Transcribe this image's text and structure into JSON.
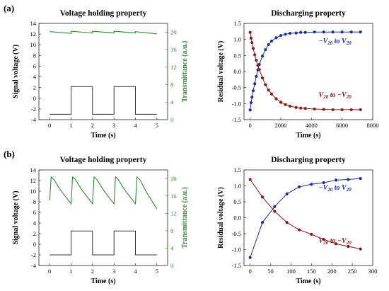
{
  "panel_labels": [
    "(a)",
    "(b)"
  ],
  "chart_data": [
    {
      "type": "line",
      "title": "Voltage holding property",
      "xlabel": "Time (s)",
      "ylabel": "Signal voltage (V)",
      "y2label": "Transmittance (a.u.)",
      "xlim": [
        -0.5,
        5.5
      ],
      "ylim": [
        -4,
        14
      ],
      "y2lim": [
        0,
        22
      ],
      "xticks": [
        0,
        1,
        2,
        3,
        4,
        5
      ],
      "yticks": [
        -4,
        -2,
        0,
        2,
        4,
        6,
        8,
        10,
        12,
        14
      ],
      "y2ticks": [
        0,
        4,
        8,
        12,
        16,
        20
      ],
      "series": [
        {
          "role": "signal",
          "color": "#333333",
          "x": [
            0,
            1,
            1,
            2,
            2,
            3,
            3,
            4,
            4,
            5
          ],
          "y": [
            -3,
            -3,
            2.2,
            2.2,
            -3,
            -3,
            2.2,
            2.2,
            -3,
            -3
          ]
        },
        {
          "role": "transmittance",
          "color": "#2e8b2e",
          "axis": "y2",
          "x": [
            0,
            1,
            1,
            2,
            2,
            3,
            3,
            4,
            4,
            5
          ],
          "y": [
            20.1,
            19.7,
            20.2,
            19.8,
            20.2,
            19.8,
            20.2,
            19.8,
            20.1,
            19.6
          ]
        }
      ]
    },
    {
      "type": "scatter",
      "title": "Discharging property",
      "xlabel": "Time (s)",
      "ylabel": "Residual voltage (V)",
      "xlim": [
        -400,
        8000
      ],
      "ylim": [
        -1.5,
        1.5
      ],
      "xticks": [
        0,
        2000,
        4000,
        6000,
        8000
      ],
      "yticks": [
        -1.5,
        -1.0,
        -0.5,
        0.0,
        0.5,
        1.0,
        1.5
      ],
      "series": [
        {
          "label_main": "−V",
          "label_sub1": "20",
          "label_mid": " to V",
          "label_sub2": "20",
          "color": "#1f2f9e",
          "x": [
            0,
            60,
            120,
            200,
            300,
            400,
            500,
            600,
            800,
            1000,
            1200,
            1400,
            1700,
            2000,
            2300,
            2600,
            3000,
            3300,
            3600,
            4200,
            4800,
            5400,
            6000,
            6600,
            7200
          ],
          "y": [
            -1.2,
            -0.97,
            -0.8,
            -0.6,
            -0.38,
            -0.15,
            0.05,
            0.22,
            0.48,
            0.68,
            0.84,
            0.95,
            1.05,
            1.12,
            1.16,
            1.19,
            1.2,
            1.22,
            1.22,
            1.23,
            1.23,
            1.23,
            1.23,
            1.23,
            1.23
          ]
        },
        {
          "label_main": "V",
          "label_sub1": "20",
          "label_mid": " to −V",
          "label_sub2": "20",
          "color": "#8b1a1a",
          "x": [
            0,
            60,
            120,
            200,
            300,
            400,
            500,
            600,
            800,
            1000,
            1200,
            1400,
            1700,
            2000,
            2300,
            2600,
            3000,
            3300,
            3600,
            4200,
            4800,
            5400,
            6000,
            6600,
            7200
          ],
          "y": [
            1.22,
            1.04,
            0.9,
            0.72,
            0.52,
            0.35,
            0.19,
            0.06,
            -0.2,
            -0.41,
            -0.58,
            -0.7,
            -0.85,
            -0.96,
            -1.03,
            -1.08,
            -1.12,
            -1.14,
            -1.15,
            -1.17,
            -1.18,
            -1.19,
            -1.19,
            -1.19,
            -1.19
          ]
        }
      ]
    },
    {
      "type": "line",
      "title": "Voltage holding property",
      "xlabel": "Time (s)",
      "ylabel": "Signal voltage (V)",
      "y2label": "Transmittance (a.u.)",
      "xlim": [
        -0.5,
        5.5
      ],
      "ylim": [
        -4,
        14
      ],
      "y2lim": [
        0,
        22
      ],
      "xticks": [
        0,
        1,
        2,
        3,
        4,
        5
      ],
      "yticks": [
        -4,
        -2,
        0,
        2,
        4,
        6,
        8,
        10,
        12,
        14
      ],
      "y2ticks": [
        0,
        4,
        8,
        12,
        16,
        20
      ],
      "series": [
        {
          "role": "signal",
          "color": "#333333",
          "x": [
            0,
            1,
            1,
            2,
            2,
            3,
            3,
            4,
            4,
            5
          ],
          "y": [
            -2,
            -2,
            2.5,
            2.5,
            -2,
            -2,
            2.5,
            2.5,
            -2,
            -2
          ]
        },
        {
          "role": "transmittance",
          "color": "#2e8b2e",
          "axis": "y2",
          "x": [
            0,
            0.07,
            0.2,
            0.5,
            1.0,
            1.07,
            1.2,
            1.5,
            2.0,
            2.07,
            2.2,
            2.5,
            3.0,
            3.07,
            3.2,
            3.5,
            4.0,
            4.07,
            4.2,
            4.5,
            5.0
          ],
          "y": [
            15,
            20.4,
            19.8,
            17.4,
            14.2,
            20.4,
            19.8,
            17.4,
            14.2,
            20.4,
            19.8,
            17.4,
            14.2,
            20.4,
            19.8,
            17.4,
            14.2,
            20.4,
            19.8,
            17.0,
            13.0
          ]
        }
      ]
    },
    {
      "type": "scatter",
      "title": "Discharging property",
      "xlabel": "Time (s)",
      "ylabel": "Residual voltage (V)",
      "xlim": [
        -15,
        300
      ],
      "ylim": [
        -1.5,
        1.5
      ],
      "xticks": [
        0,
        50,
        100,
        150,
        200,
        250,
        300
      ],
      "yticks": [
        -1.5,
        -1.0,
        -0.5,
        0.0,
        0.5,
        1.0,
        1.5
      ],
      "series": [
        {
          "label_main": "−V",
          "label_sub1": "20",
          "label_mid": " to V",
          "label_sub2": "20",
          "color": "#1f2f9e",
          "x": [
            0,
            30,
            60,
            90,
            120,
            150,
            180,
            210,
            240,
            270
          ],
          "y": [
            -1.25,
            -0.15,
            0.35,
            0.75,
            0.97,
            1.05,
            1.1,
            1.18,
            1.2,
            1.23
          ]
        },
        {
          "label_main": "V",
          "label_sub1": "20",
          "label_mid": " to −V",
          "label_sub2": "20",
          "color": "#8b1a1a",
          "x": [
            0,
            30,
            60,
            90,
            120,
            150,
            180,
            210,
            240,
            270
          ],
          "y": [
            1.2,
            0.65,
            0.2,
            -0.15,
            -0.38,
            -0.52,
            -0.68,
            -0.82,
            -0.9,
            -0.98
          ]
        }
      ]
    }
  ]
}
